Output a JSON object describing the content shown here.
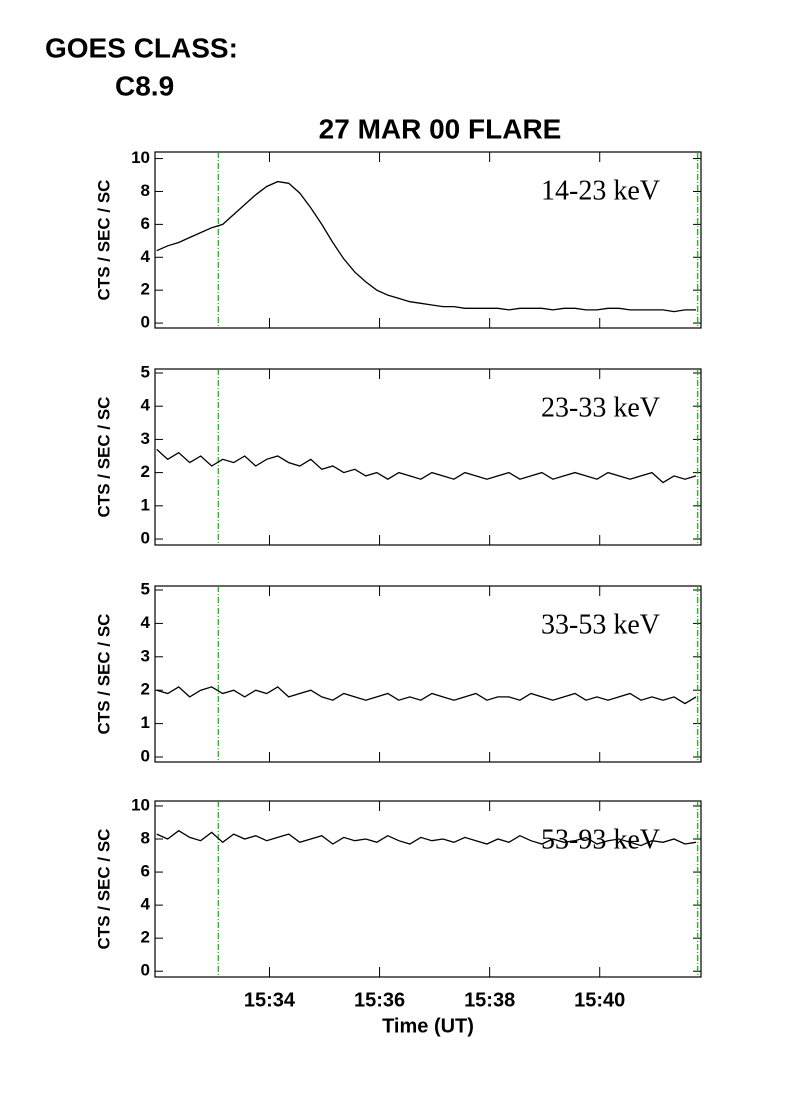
{
  "header": {
    "goes_label": "GOES CLASS:",
    "goes_class": "C8.9"
  },
  "chart_data": [
    {
      "type": "line",
      "title": "27 MAR 00 FLARE",
      "ylabel": "CTS / SEC / SC",
      "annotation": "14-23 keV",
      "color": "#000000",
      "x": [
        931.95,
        932.15,
        932.35,
        932.55,
        932.75,
        932.95,
        933.15,
        933.35,
        933.55,
        933.75,
        933.95,
        934.15,
        934.35,
        934.55,
        934.75,
        934.95,
        935.15,
        935.35,
        935.55,
        935.75,
        935.95,
        936.15,
        936.35,
        936.55,
        936.75,
        936.95,
        937.15,
        937.35,
        937.55,
        937.75,
        937.95,
        938.15,
        938.35,
        938.55,
        938.75,
        938.95,
        939.15,
        939.35,
        939.55,
        939.75,
        939.95,
        940.15,
        940.35,
        940.55,
        940.75,
        940.95,
        941.15,
        941.35,
        941.55,
        941.75
      ],
      "values": [
        4.4,
        4.7,
        4.9,
        5.2,
        5.5,
        5.8,
        6.0,
        6.6,
        7.2,
        7.8,
        8.3,
        8.6,
        8.5,
        7.9,
        7.0,
        6.0,
        4.9,
        3.9,
        3.1,
        2.5,
        2.0,
        1.7,
        1.5,
        1.3,
        1.2,
        1.1,
        1.0,
        1.0,
        0.9,
        0.9,
        0.9,
        0.9,
        0.8,
        0.9,
        0.9,
        0.9,
        0.8,
        0.9,
        0.9,
        0.8,
        0.8,
        0.9,
        0.9,
        0.8,
        0.8,
        0.8,
        0.8,
        0.7,
        0.8,
        0.8
      ],
      "xlim": [
        931.92,
        941.84
      ],
      "ylim": [
        -0.3,
        10.4
      ],
      "yticks": [
        0,
        2,
        4,
        6,
        8,
        10
      ],
      "vlines": [
        933.07,
        941.78
      ],
      "vline_color": "#00bb00"
    },
    {
      "type": "line",
      "ylabel": "CTS / SEC / SC",
      "annotation": "23-33 keV",
      "color": "#000000",
      "x": [
        931.95,
        932.15,
        932.35,
        932.55,
        932.75,
        932.95,
        933.15,
        933.35,
        933.55,
        933.75,
        933.95,
        934.15,
        934.35,
        934.55,
        934.75,
        934.95,
        935.15,
        935.35,
        935.55,
        935.75,
        935.95,
        936.15,
        936.35,
        936.55,
        936.75,
        936.95,
        937.15,
        937.35,
        937.55,
        937.75,
        937.95,
        938.15,
        938.35,
        938.55,
        938.75,
        938.95,
        939.15,
        939.35,
        939.55,
        939.75,
        939.95,
        940.15,
        940.35,
        940.55,
        940.75,
        940.95,
        941.15,
        941.35,
        941.55,
        941.75
      ],
      "values": [
        2.7,
        2.4,
        2.6,
        2.3,
        2.5,
        2.2,
        2.4,
        2.3,
        2.5,
        2.2,
        2.4,
        2.5,
        2.3,
        2.2,
        2.4,
        2.1,
        2.2,
        2.0,
        2.1,
        1.9,
        2.0,
        1.8,
        2.0,
        1.9,
        1.8,
        2.0,
        1.9,
        1.8,
        2.0,
        1.9,
        1.8,
        1.9,
        2.0,
        1.8,
        1.9,
        2.0,
        1.8,
        1.9,
        2.0,
        1.9,
        1.8,
        2.0,
        1.9,
        1.8,
        1.9,
        2.0,
        1.7,
        1.9,
        1.8,
        1.9
      ],
      "xlim": [
        931.92,
        941.84
      ],
      "ylim": [
        -0.18,
        5.12
      ],
      "yticks": [
        0,
        1,
        2,
        3,
        4,
        5
      ],
      "vlines": [
        933.07,
        941.78
      ],
      "vline_color": "#00bb00"
    },
    {
      "type": "line",
      "ylabel": "CTS / SEC / SC",
      "annotation": "33-53 keV",
      "color": "#000000",
      "x": [
        931.95,
        932.15,
        932.35,
        932.55,
        932.75,
        932.95,
        933.15,
        933.35,
        933.55,
        933.75,
        933.95,
        934.15,
        934.35,
        934.55,
        934.75,
        934.95,
        935.15,
        935.35,
        935.55,
        935.75,
        935.95,
        936.15,
        936.35,
        936.55,
        936.75,
        936.95,
        937.15,
        937.35,
        937.55,
        937.75,
        937.95,
        938.15,
        938.35,
        938.55,
        938.75,
        938.95,
        939.15,
        939.35,
        939.55,
        939.75,
        939.95,
        940.15,
        940.35,
        940.55,
        940.75,
        940.95,
        941.15,
        941.35,
        941.55,
        941.75
      ],
      "values": [
        2.0,
        1.9,
        2.1,
        1.8,
        2.0,
        2.1,
        1.9,
        2.0,
        1.8,
        2.0,
        1.9,
        2.1,
        1.8,
        1.9,
        2.0,
        1.8,
        1.7,
        1.9,
        1.8,
        1.7,
        1.8,
        1.9,
        1.7,
        1.8,
        1.7,
        1.9,
        1.8,
        1.7,
        1.8,
        1.9,
        1.7,
        1.8,
        1.8,
        1.7,
        1.9,
        1.8,
        1.7,
        1.8,
        1.9,
        1.7,
        1.8,
        1.7,
        1.8,
        1.9,
        1.7,
        1.8,
        1.7,
        1.8,
        1.6,
        1.8
      ],
      "xlim": [
        931.92,
        941.84
      ],
      "ylim": [
        -0.15,
        5.12
      ],
      "yticks": [
        0,
        1,
        2,
        3,
        4,
        5
      ],
      "vlines": [
        933.07,
        941.78
      ],
      "vline_color": "#00bb00"
    },
    {
      "type": "line",
      "ylabel": "CTS / SEC / SC",
      "annotation": "53-93 keV",
      "xlabel": "Time (UT)",
      "color": "#000000",
      "x": [
        931.95,
        932.15,
        932.35,
        932.55,
        932.75,
        932.95,
        933.15,
        933.35,
        933.55,
        933.75,
        933.95,
        934.15,
        934.35,
        934.55,
        934.75,
        934.95,
        935.15,
        935.35,
        935.55,
        935.75,
        935.95,
        936.15,
        936.35,
        936.55,
        936.75,
        936.95,
        937.15,
        937.35,
        937.55,
        937.75,
        937.95,
        938.15,
        938.35,
        938.55,
        938.75,
        938.95,
        939.15,
        939.35,
        939.55,
        939.75,
        939.95,
        940.15,
        940.35,
        940.55,
        940.75,
        940.95,
        941.15,
        941.35,
        941.55,
        941.75
      ],
      "values": [
        8.3,
        8.0,
        8.5,
        8.1,
        7.9,
        8.4,
        7.8,
        8.3,
        8.0,
        8.2,
        7.9,
        8.1,
        8.3,
        7.8,
        8.0,
        8.2,
        7.7,
        8.1,
        7.9,
        8.0,
        7.8,
        8.2,
        7.9,
        7.7,
        8.1,
        7.9,
        8.0,
        7.8,
        8.1,
        7.9,
        7.7,
        8.0,
        7.8,
        8.2,
        7.9,
        7.7,
        8.0,
        7.8,
        7.9,
        8.1,
        7.7,
        7.9,
        8.0,
        7.8,
        7.6,
        7.9,
        7.8,
        8.0,
        7.7,
        7.8
      ],
      "xlim": [
        931.92,
        941.84
      ],
      "ylim": [
        -0.35,
        10.3
      ],
      "yticks": [
        0,
        2,
        4,
        6,
        8,
        10
      ],
      "xticks": [
        {
          "value": 934,
          "label": "15:34"
        },
        {
          "value": 936,
          "label": "15:36"
        },
        {
          "value": 938,
          "label": "15:38"
        },
        {
          "value": 940,
          "label": "15:40"
        }
      ],
      "vlines": [
        933.07,
        941.78
      ],
      "vline_color": "#00bb00"
    }
  ]
}
